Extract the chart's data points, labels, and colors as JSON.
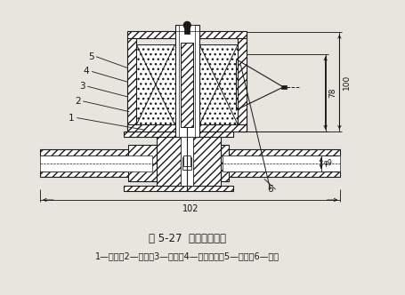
{
  "title": "图 5-27  直动式电磁阀",
  "caption": "1—阀体；2—阀座；3—铁芯；4—隔磁套管；5—线圈；6—弹簧",
  "bg_color": "#e8e4de",
  "line_color": "#1a1a1a",
  "dim_color": "#111111",
  "dim_102": "102",
  "dim_78": "78",
  "dim_100": "100",
  "dim_phi9": "φ9"
}
